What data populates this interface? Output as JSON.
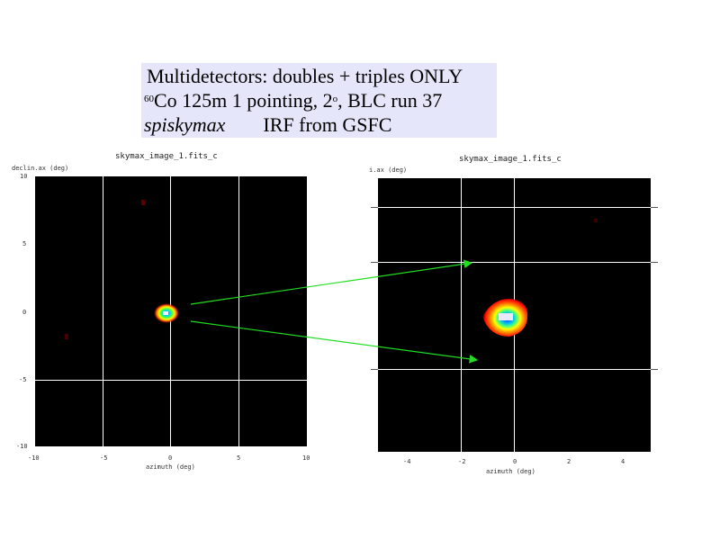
{
  "caption": {
    "line1": "Multidetectors: doubles + triples ONLY",
    "line2_sup": "60",
    "line2_text": "Co 125m   1 pointing, 2",
    "line2_deg": "o",
    "line2_tail": ", BLC run 37",
    "line3_code": "spiskymax",
    "line3_text": "IRF from GSFC"
  },
  "left_plot": {
    "title": "skymax_image_1.fits_c",
    "ylabel": "declin.ax (deg)",
    "xlabel": "azimuth (deg)",
    "y_ticks": [
      "10",
      "5",
      "0",
      "-5",
      "-10"
    ],
    "x_ticks": [
      "-10",
      "-5",
      "0",
      "5",
      "10"
    ]
  },
  "right_plot": {
    "title": "skymax_image_1.fits_c",
    "ylabel": "i.ax (deg)",
    "xlabel": "azimuth (deg)",
    "x_ticks": [
      "-4",
      "-2",
      "0",
      "2",
      "4"
    ]
  },
  "colors": {
    "arrow": "#22dd22",
    "background": "#000000",
    "grid": "#ffffff"
  }
}
